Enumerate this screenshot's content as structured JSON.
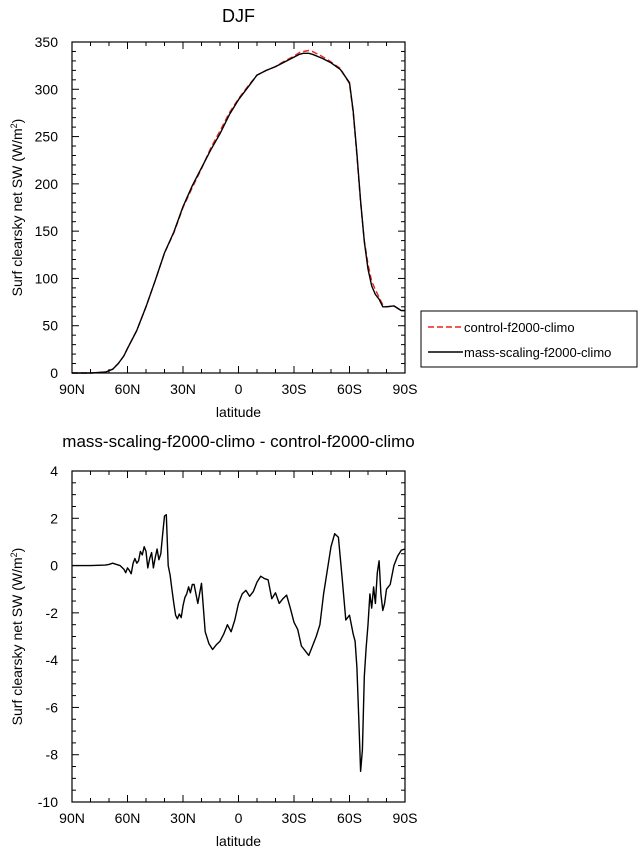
{
  "chart_data": [
    {
      "type": "line",
      "title": "DJF",
      "xlabel": "latitude",
      "ylabel": "Surf clearsky net SW (W/m",
      "ylabel_sup": "2",
      "ylabel_close": ")",
      "xlim": [
        90,
        -90
      ],
      "ylim": [
        0,
        350
      ],
      "xticks": [
        90,
        60,
        30,
        0,
        -30,
        -60,
        -90
      ],
      "xtick_labels": [
        "90N",
        "60N",
        "30N",
        "0",
        "30S",
        "60S",
        "90S"
      ],
      "yticks": [
        0,
        50,
        100,
        150,
        200,
        250,
        300,
        350
      ],
      "ytick_labels": [
        "0",
        "50",
        "100",
        "150",
        "200",
        "250",
        "300",
        "350"
      ],
      "legend_position": "right",
      "series": [
        {
          "name": "control-f2000-climo",
          "color": "#e8231f",
          "dash": "dashed",
          "x": [
            90,
            80,
            72,
            68,
            65,
            62,
            60,
            55,
            50,
            45,
            40,
            35,
            30,
            25,
            20,
            15,
            10,
            5,
            0,
            -5,
            -10,
            -15,
            -20,
            -25,
            -30,
            -33,
            -35,
            -38,
            -40,
            -45,
            -50,
            -55,
            -60,
            -62,
            -64,
            -66,
            -68,
            -70,
            -72,
            -74,
            -76,
            -78,
            -80,
            -84,
            -88,
            -90
          ],
          "y": [
            0,
            0,
            1,
            4,
            10,
            18,
            26,
            45,
            70,
            98,
            127,
            148,
            175,
            196,
            216,
            238,
            256,
            275,
            290,
            303,
            315,
            320,
            324,
            330,
            335,
            339,
            340,
            341,
            340,
            335,
            329,
            322,
            306,
            275,
            230,
            180,
            140,
            115,
            97,
            88,
            80,
            72,
            70,
            71,
            66,
            66
          ]
        },
        {
          "name": "mass-scaling-f2000-climo",
          "color": "#000000",
          "dash": "solid",
          "x": [
            90,
            80,
            72,
            68,
            65,
            62,
            60,
            55,
            50,
            45,
            40,
            35,
            30,
            25,
            20,
            15,
            10,
            5,
            0,
            -5,
            -10,
            -15,
            -20,
            -25,
            -30,
            -33,
            -35,
            -38,
            -40,
            -45,
            -50,
            -55,
            -60,
            -62,
            -64,
            -66,
            -68,
            -70,
            -72,
            -74,
            -76,
            -78,
            -80,
            -84,
            -88,
            -90
          ],
          "y": [
            0,
            0,
            1,
            4,
            10,
            18,
            26,
            45,
            70,
            98,
            127,
            149,
            176,
            198,
            217,
            236,
            253,
            273,
            289,
            302,
            315,
            320,
            324,
            329,
            334,
            337,
            338,
            338,
            337,
            333,
            328,
            321,
            307,
            277,
            232,
            182,
            139,
            110,
            92,
            83,
            78,
            70,
            70,
            71,
            66,
            66
          ]
        }
      ]
    },
    {
      "type": "line",
      "title": "mass-scaling-f2000-climo - control-f2000-climo",
      "xlabel": "latitude",
      "ylabel": "Surf clearsky net SW (W/m",
      "ylabel_sup": "2",
      "ylabel_close": ")",
      "xlim": [
        90,
        -90
      ],
      "ylim": [
        -10,
        4
      ],
      "xticks": [
        90,
        60,
        30,
        0,
        -30,
        -60,
        -90
      ],
      "xtick_labels": [
        "90N",
        "60N",
        "30N",
        "0",
        "30S",
        "60S",
        "90S"
      ],
      "yticks": [
        -10,
        -8,
        -6,
        -4,
        -2,
        0,
        2,
        4
      ],
      "ytick_labels": [
        "-10",
        "-8",
        "-6",
        "-4",
        "-2",
        "0",
        "2",
        "4"
      ],
      "series": [
        {
          "color": "#000000",
          "dash": "solid",
          "x": [
            90,
            80,
            72,
            70,
            68,
            66,
            64,
            62,
            61,
            60,
            59,
            58,
            57,
            56,
            55,
            54,
            53,
            52,
            51,
            50,
            49,
            48,
            47,
            46,
            45,
            44,
            43,
            42,
            41,
            40,
            39,
            38,
            37,
            36,
            35,
            34,
            33,
            32,
            31,
            30,
            29,
            28,
            27,
            26,
            25,
            24,
            22,
            20,
            18,
            16,
            14,
            12,
            10,
            8,
            6,
            4,
            2,
            0,
            -2,
            -4,
            -6,
            -8,
            -10,
            -12,
            -14,
            -16,
            -18,
            -20,
            -22,
            -24,
            -26,
            -28,
            -30,
            -32,
            -34,
            -36,
            -38,
            -40,
            -42,
            -44,
            -46,
            -48,
            -50,
            -52,
            -54,
            -56,
            -58,
            -60,
            -62,
            -63,
            -64,
            -65,
            -66,
            -67,
            -68,
            -69,
            -70,
            -71,
            -72,
            -73,
            -74,
            -75,
            -76,
            -77,
            -78,
            -79,
            -80,
            -82,
            -84,
            -86,
            -88,
            -90
          ],
          "y": [
            0,
            0,
            0.02,
            0.05,
            0.1,
            0.05,
            0.0,
            -0.15,
            -0.3,
            -0.1,
            -0.2,
            -0.35,
            0.1,
            0.3,
            0.1,
            0.2,
            0.6,
            0.45,
            0.8,
            0.6,
            -0.1,
            0.3,
            0.55,
            -0.1,
            0.35,
            0.7,
            0.25,
            0.5,
            1.3,
            2.1,
            2.15,
            0.0,
            -0.4,
            -1.0,
            -1.6,
            -2.1,
            -2.25,
            -2.05,
            -2.2,
            -1.7,
            -1.35,
            -1.2,
            -0.9,
            -1.15,
            -0.8,
            -0.8,
            -1.6,
            -0.75,
            -2.8,
            -3.3,
            -3.55,
            -3.35,
            -3.2,
            -2.9,
            -2.5,
            -2.8,
            -2.3,
            -1.6,
            -1.2,
            -1.05,
            -1.3,
            -1.1,
            -0.7,
            -0.45,
            -0.55,
            -0.6,
            -1.4,
            -1.15,
            -1.6,
            -1.4,
            -1.25,
            -1.8,
            -2.4,
            -2.7,
            -3.4,
            -3.6,
            -3.8,
            -3.4,
            -3.0,
            -2.5,
            -1.2,
            -0.2,
            0.8,
            1.35,
            1.2,
            -0.5,
            -2.3,
            -2.1,
            -2.9,
            -3.2,
            -4.3,
            -6.5,
            -8.7,
            -7.8,
            -4.7,
            -3.5,
            -2.5,
            -1.2,
            -1.8,
            -0.9,
            -1.6,
            -0.3,
            0.2,
            -1.2,
            -1.9,
            -1.6,
            -1.0,
            -0.8,
            0.0,
            0.4,
            0.65,
            0.7
          ]
        }
      ]
    }
  ]
}
